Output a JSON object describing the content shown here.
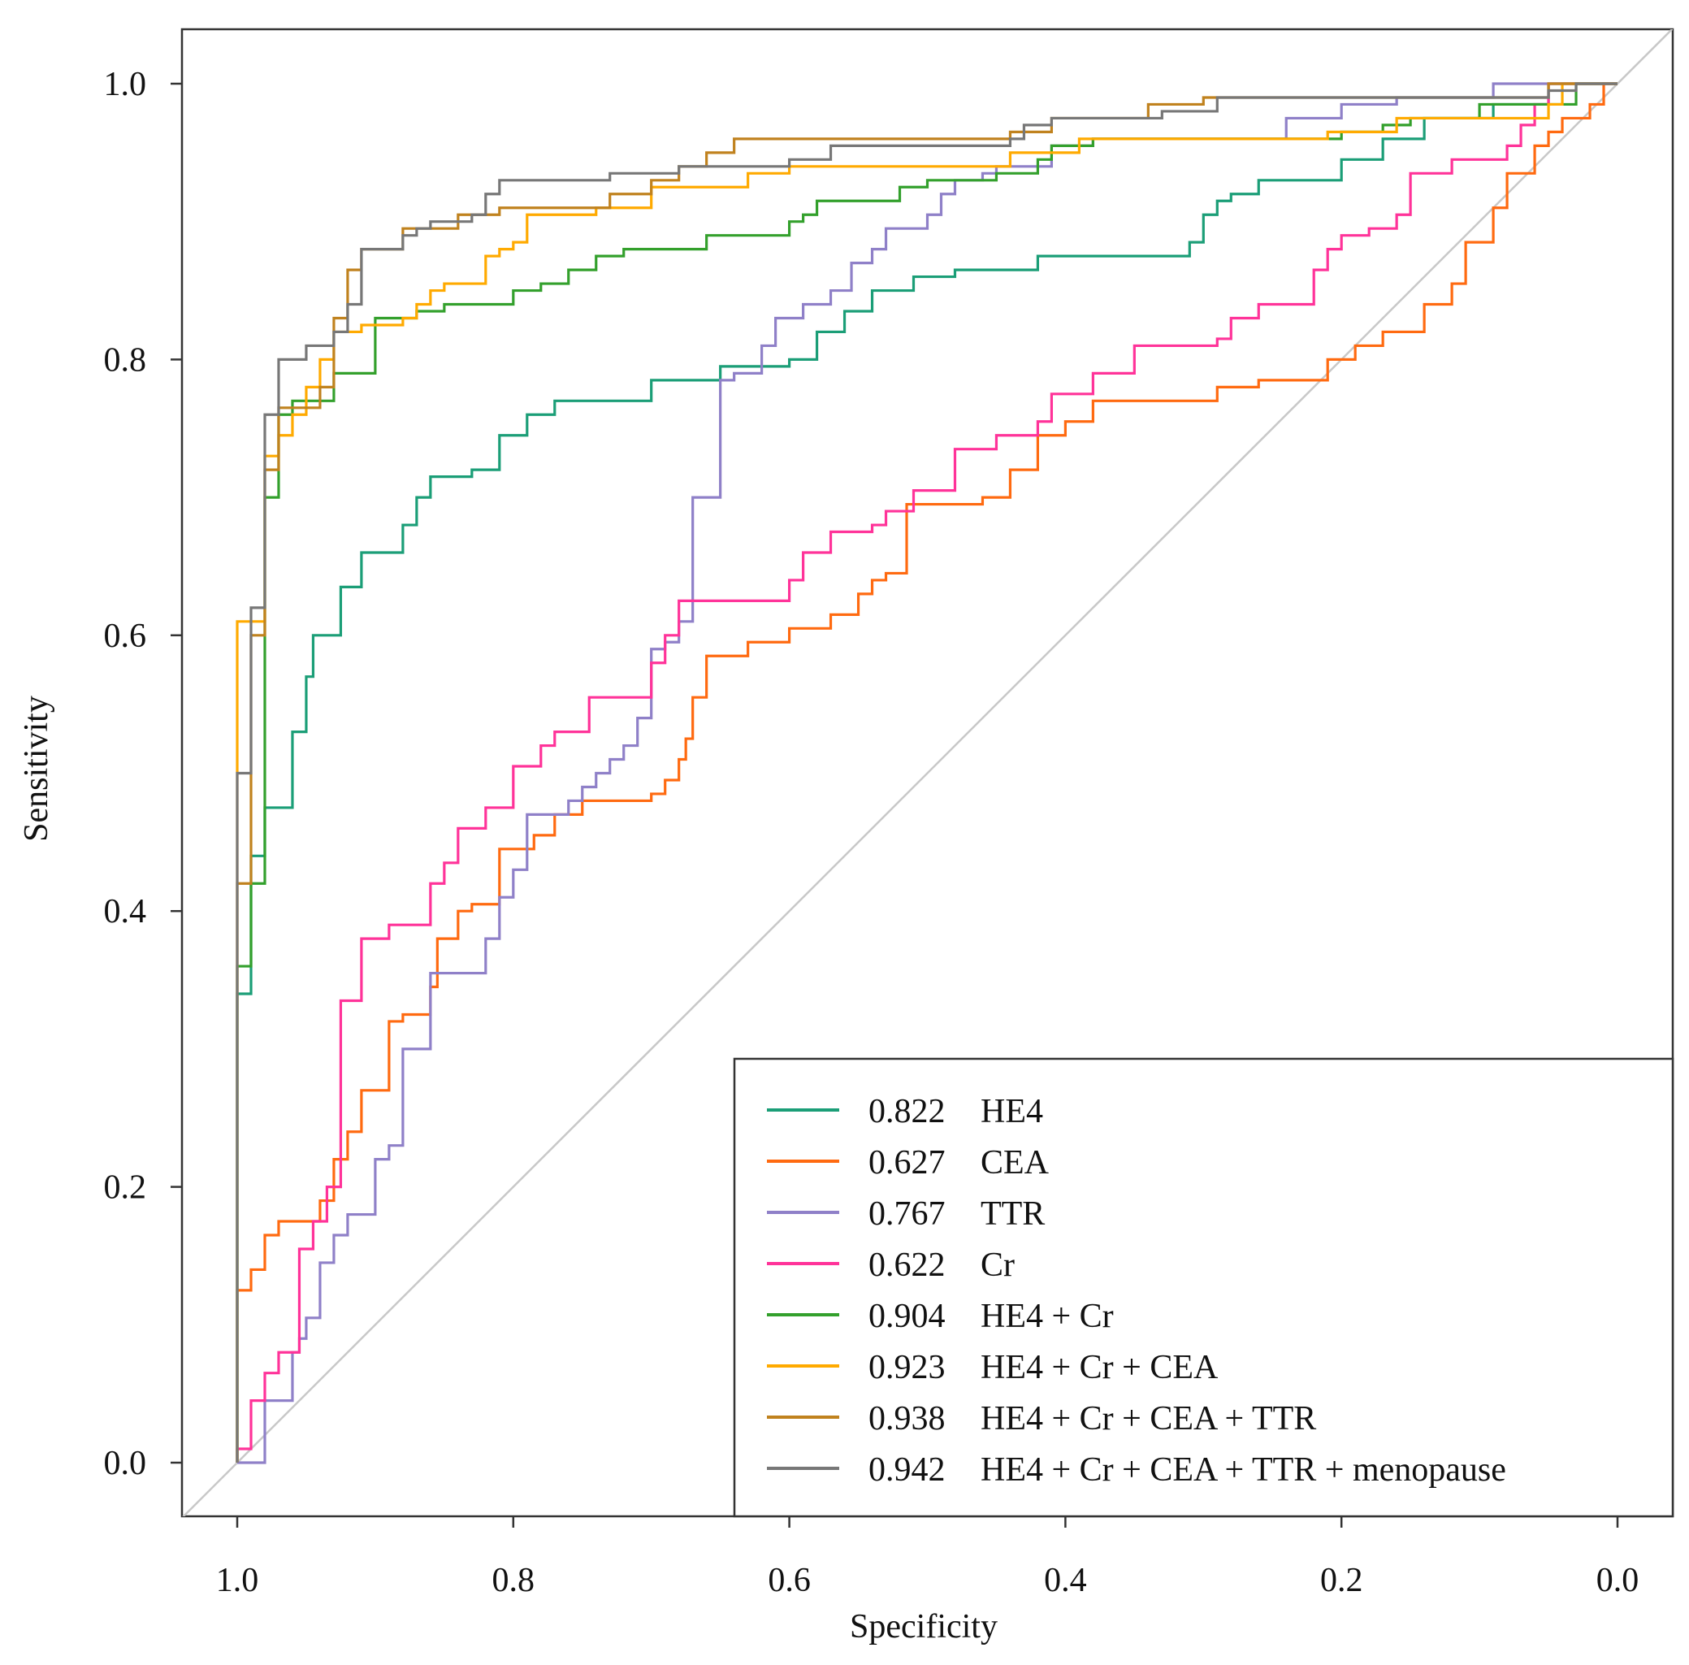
{
  "chart_data": {
    "type": "line",
    "title": "",
    "xlabel": "Specificity",
    "ylabel": "Sensitivity",
    "xlim": [
      1.0,
      0.0
    ],
    "ylim": [
      0.0,
      1.0
    ],
    "x_ticks": [
      "1.0",
      "0.8",
      "0.6",
      "0.4",
      "0.2",
      "0.0"
    ],
    "x_tick_values": [
      1.0,
      0.8,
      0.6,
      0.4,
      0.2,
      0.0
    ],
    "y_ticks": [
      "0.0",
      "0.2",
      "0.4",
      "0.6",
      "0.8",
      "1.0"
    ],
    "y_tick_values": [
      0.0,
      0.2,
      0.4,
      0.6,
      0.8,
      1.0
    ],
    "grid": false,
    "legend_position": "bottom-right",
    "reference_line": "diagonal",
    "series": [
      {
        "name": "HE4",
        "auc": "0.822",
        "color": "#1b9e77",
        "points": [
          [
            1,
            0
          ],
          [
            1,
            0.34
          ],
          [
            0.99,
            0.44
          ],
          [
            0.98,
            0.475
          ],
          [
            0.96,
            0.53
          ],
          [
            0.95,
            0.57
          ],
          [
            0.945,
            0.6
          ],
          [
            0.925,
            0.635
          ],
          [
            0.91,
            0.66
          ],
          [
            0.88,
            0.68
          ],
          [
            0.87,
            0.7
          ],
          [
            0.86,
            0.715
          ],
          [
            0.83,
            0.72
          ],
          [
            0.81,
            0.745
          ],
          [
            0.79,
            0.76
          ],
          [
            0.77,
            0.77
          ],
          [
            0.7,
            0.785
          ],
          [
            0.65,
            0.795
          ],
          [
            0.6,
            0.8
          ],
          [
            0.58,
            0.82
          ],
          [
            0.56,
            0.835
          ],
          [
            0.54,
            0.85
          ],
          [
            0.51,
            0.86
          ],
          [
            0.48,
            0.865
          ],
          [
            0.42,
            0.875
          ],
          [
            0.31,
            0.885
          ],
          [
            0.3,
            0.905
          ],
          [
            0.29,
            0.915
          ],
          [
            0.28,
            0.92
          ],
          [
            0.26,
            0.93
          ],
          [
            0.2,
            0.945
          ],
          [
            0.17,
            0.96
          ],
          [
            0.14,
            0.975
          ],
          [
            0.09,
            0.985
          ],
          [
            0.05,
            1
          ],
          [
            0,
            1
          ]
        ]
      },
      {
        "name": "CEA",
        "auc": "0.627",
        "color": "#ff6a10",
        "points": [
          [
            1,
            0
          ],
          [
            1,
            0.125
          ],
          [
            0.99,
            0.14
          ],
          [
            0.98,
            0.165
          ],
          [
            0.97,
            0.175
          ],
          [
            0.94,
            0.19
          ],
          [
            0.93,
            0.22
          ],
          [
            0.92,
            0.24
          ],
          [
            0.91,
            0.27
          ],
          [
            0.89,
            0.32
          ],
          [
            0.88,
            0.325
          ],
          [
            0.86,
            0.345
          ],
          [
            0.855,
            0.38
          ],
          [
            0.84,
            0.4
          ],
          [
            0.83,
            0.405
          ],
          [
            0.81,
            0.445
          ],
          [
            0.79,
            0.445
          ],
          [
            0.785,
            0.455
          ],
          [
            0.77,
            0.47
          ],
          [
            0.75,
            0.48
          ],
          [
            0.7,
            0.485
          ],
          [
            0.69,
            0.495
          ],
          [
            0.68,
            0.51
          ],
          [
            0.675,
            0.525
          ],
          [
            0.67,
            0.555
          ],
          [
            0.66,
            0.585
          ],
          [
            0.63,
            0.595
          ],
          [
            0.6,
            0.605
          ],
          [
            0.57,
            0.615
          ],
          [
            0.55,
            0.63
          ],
          [
            0.54,
            0.64
          ],
          [
            0.53,
            0.645
          ],
          [
            0.515,
            0.695
          ],
          [
            0.46,
            0.7
          ],
          [
            0.44,
            0.72
          ],
          [
            0.42,
            0.745
          ],
          [
            0.4,
            0.755
          ],
          [
            0.38,
            0.77
          ],
          [
            0.29,
            0.78
          ],
          [
            0.26,
            0.785
          ],
          [
            0.21,
            0.8
          ],
          [
            0.19,
            0.81
          ],
          [
            0.17,
            0.82
          ],
          [
            0.14,
            0.84
          ],
          [
            0.12,
            0.855
          ],
          [
            0.11,
            0.885
          ],
          [
            0.09,
            0.91
          ],
          [
            0.08,
            0.935
          ],
          [
            0.06,
            0.955
          ],
          [
            0.05,
            0.965
          ],
          [
            0.04,
            0.975
          ],
          [
            0.02,
            0.985
          ],
          [
            0.01,
            1
          ],
          [
            0,
            1
          ]
        ]
      },
      {
        "name": "TTR",
        "auc": "0.767",
        "color": "#8f80c8",
        "points": [
          [
            1,
            0
          ],
          [
            0.98,
            0.015
          ],
          [
            0.98,
            0.045
          ],
          [
            0.96,
            0.08
          ],
          [
            0.955,
            0.09
          ],
          [
            0.95,
            0.105
          ],
          [
            0.94,
            0.145
          ],
          [
            0.93,
            0.165
          ],
          [
            0.92,
            0.18
          ],
          [
            0.9,
            0.22
          ],
          [
            0.89,
            0.23
          ],
          [
            0.88,
            0.3
          ],
          [
            0.86,
            0.355
          ],
          [
            0.82,
            0.38
          ],
          [
            0.81,
            0.41
          ],
          [
            0.8,
            0.43
          ],
          [
            0.79,
            0.47
          ],
          [
            0.76,
            0.48
          ],
          [
            0.75,
            0.49
          ],
          [
            0.74,
            0.5
          ],
          [
            0.73,
            0.51
          ],
          [
            0.72,
            0.52
          ],
          [
            0.71,
            0.54
          ],
          [
            0.7,
            0.59
          ],
          [
            0.69,
            0.595
          ],
          [
            0.68,
            0.61
          ],
          [
            0.67,
            0.7
          ],
          [
            0.65,
            0.785
          ],
          [
            0.64,
            0.79
          ],
          [
            0.62,
            0.81
          ],
          [
            0.61,
            0.83
          ],
          [
            0.59,
            0.84
          ],
          [
            0.57,
            0.85
          ],
          [
            0.555,
            0.87
          ],
          [
            0.54,
            0.88
          ],
          [
            0.53,
            0.895
          ],
          [
            0.5,
            0.905
          ],
          [
            0.49,
            0.92
          ],
          [
            0.48,
            0.93
          ],
          [
            0.46,
            0.935
          ],
          [
            0.45,
            0.94
          ],
          [
            0.41,
            0.955
          ],
          [
            0.38,
            0.96
          ],
          [
            0.24,
            0.975
          ],
          [
            0.2,
            0.985
          ],
          [
            0.16,
            0.99
          ],
          [
            0.09,
            1
          ],
          [
            0,
            1
          ]
        ]
      },
      {
        "name": "Cr",
        "auc": "0.622",
        "color": "#ff3399",
        "points": [
          [
            1,
            0
          ],
          [
            1,
            0.01
          ],
          [
            0.99,
            0.045
          ],
          [
            0.98,
            0.065
          ],
          [
            0.97,
            0.08
          ],
          [
            0.955,
            0.155
          ],
          [
            0.945,
            0.175
          ],
          [
            0.935,
            0.2
          ],
          [
            0.925,
            0.335
          ],
          [
            0.91,
            0.38
          ],
          [
            0.89,
            0.39
          ],
          [
            0.86,
            0.42
          ],
          [
            0.85,
            0.435
          ],
          [
            0.84,
            0.46
          ],
          [
            0.82,
            0.475
          ],
          [
            0.8,
            0.505
          ],
          [
            0.78,
            0.52
          ],
          [
            0.77,
            0.53
          ],
          [
            0.745,
            0.555
          ],
          [
            0.7,
            0.58
          ],
          [
            0.69,
            0.6
          ],
          [
            0.68,
            0.625
          ],
          [
            0.64,
            0.625
          ],
          [
            0.6,
            0.64
          ],
          [
            0.59,
            0.66
          ],
          [
            0.57,
            0.675
          ],
          [
            0.54,
            0.68
          ],
          [
            0.53,
            0.69
          ],
          [
            0.51,
            0.705
          ],
          [
            0.48,
            0.735
          ],
          [
            0.45,
            0.745
          ],
          [
            0.42,
            0.755
          ],
          [
            0.41,
            0.775
          ],
          [
            0.38,
            0.79
          ],
          [
            0.35,
            0.81
          ],
          [
            0.29,
            0.815
          ],
          [
            0.28,
            0.83
          ],
          [
            0.26,
            0.84
          ],
          [
            0.22,
            0.865
          ],
          [
            0.21,
            0.88
          ],
          [
            0.2,
            0.89
          ],
          [
            0.18,
            0.895
          ],
          [
            0.16,
            0.905
          ],
          [
            0.15,
            0.935
          ],
          [
            0.12,
            0.945
          ],
          [
            0.08,
            0.955
          ],
          [
            0.07,
            0.97
          ],
          [
            0.06,
            0.985
          ],
          [
            0.05,
            1
          ],
          [
            0,
            1
          ]
        ]
      },
      {
        "name": "HE4 + Cr",
        "auc": "0.904",
        "color": "#33a02c",
        "points": [
          [
            1,
            0
          ],
          [
            1,
            0.36
          ],
          [
            0.99,
            0.42
          ],
          [
            0.98,
            0.7
          ],
          [
            0.97,
            0.76
          ],
          [
            0.96,
            0.77
          ],
          [
            0.93,
            0.79
          ],
          [
            0.9,
            0.83
          ],
          [
            0.87,
            0.835
          ],
          [
            0.85,
            0.84
          ],
          [
            0.8,
            0.85
          ],
          [
            0.78,
            0.855
          ],
          [
            0.76,
            0.865
          ],
          [
            0.74,
            0.875
          ],
          [
            0.72,
            0.88
          ],
          [
            0.66,
            0.89
          ],
          [
            0.6,
            0.9
          ],
          [
            0.59,
            0.905
          ],
          [
            0.58,
            0.915
          ],
          [
            0.52,
            0.925
          ],
          [
            0.5,
            0.93
          ],
          [
            0.45,
            0.935
          ],
          [
            0.42,
            0.945
          ],
          [
            0.41,
            0.955
          ],
          [
            0.38,
            0.96
          ],
          [
            0.2,
            0.965
          ],
          [
            0.17,
            0.97
          ],
          [
            0.15,
            0.975
          ],
          [
            0.1,
            0.985
          ],
          [
            0.03,
            1
          ],
          [
            0,
            1
          ]
        ]
      },
      {
        "name": "HE4 + Cr + CEA",
        "auc": "0.923",
        "color": "#ffaa00",
        "points": [
          [
            1,
            0
          ],
          [
            1,
            0.61
          ],
          [
            0.98,
            0.73
          ],
          [
            0.97,
            0.745
          ],
          [
            0.96,
            0.76
          ],
          [
            0.95,
            0.78
          ],
          [
            0.94,
            0.8
          ],
          [
            0.93,
            0.82
          ],
          [
            0.91,
            0.825
          ],
          [
            0.88,
            0.83
          ],
          [
            0.87,
            0.84
          ],
          [
            0.86,
            0.85
          ],
          [
            0.85,
            0.855
          ],
          [
            0.82,
            0.875
          ],
          [
            0.81,
            0.88
          ],
          [
            0.8,
            0.885
          ],
          [
            0.79,
            0.905
          ],
          [
            0.74,
            0.91
          ],
          [
            0.7,
            0.925
          ],
          [
            0.63,
            0.935
          ],
          [
            0.6,
            0.94
          ],
          [
            0.44,
            0.95
          ],
          [
            0.39,
            0.96
          ],
          [
            0.21,
            0.965
          ],
          [
            0.16,
            0.975
          ],
          [
            0.05,
            0.985
          ],
          [
            0.04,
            1
          ],
          [
            0,
            1
          ]
        ]
      },
      {
        "name": "HE4 + Cr + CEA + TTR",
        "auc": "0.938",
        "color": "#c0821e",
        "points": [
          [
            1,
            0
          ],
          [
            1,
            0.42
          ],
          [
            0.99,
            0.6
          ],
          [
            0.98,
            0.72
          ],
          [
            0.97,
            0.765
          ],
          [
            0.94,
            0.78
          ],
          [
            0.93,
            0.83
          ],
          [
            0.92,
            0.865
          ],
          [
            0.91,
            0.88
          ],
          [
            0.88,
            0.895
          ],
          [
            0.84,
            0.905
          ],
          [
            0.81,
            0.91
          ],
          [
            0.73,
            0.92
          ],
          [
            0.7,
            0.93
          ],
          [
            0.68,
            0.94
          ],
          [
            0.66,
            0.95
          ],
          [
            0.64,
            0.96
          ],
          [
            0.44,
            0.965
          ],
          [
            0.41,
            0.975
          ],
          [
            0.34,
            0.985
          ],
          [
            0.3,
            0.99
          ],
          [
            0.05,
            1
          ],
          [
            0,
            1
          ]
        ]
      },
      {
        "name": "HE4 + Cr + CEA + TTR + menopause",
        "auc": "0.942",
        "color": "#777777",
        "points": [
          [
            1,
            0
          ],
          [
            1,
            0.5
          ],
          [
            0.99,
            0.62
          ],
          [
            0.98,
            0.76
          ],
          [
            0.97,
            0.8
          ],
          [
            0.95,
            0.81
          ],
          [
            0.93,
            0.82
          ],
          [
            0.92,
            0.84
          ],
          [
            0.91,
            0.88
          ],
          [
            0.88,
            0.89
          ],
          [
            0.87,
            0.895
          ],
          [
            0.86,
            0.9
          ],
          [
            0.83,
            0.905
          ],
          [
            0.82,
            0.92
          ],
          [
            0.81,
            0.93
          ],
          [
            0.73,
            0.935
          ],
          [
            0.68,
            0.94
          ],
          [
            0.6,
            0.945
          ],
          [
            0.57,
            0.955
          ],
          [
            0.44,
            0.96
          ],
          [
            0.43,
            0.97
          ],
          [
            0.41,
            0.975
          ],
          [
            0.33,
            0.98
          ],
          [
            0.29,
            0.99
          ],
          [
            0.05,
            0.995
          ],
          [
            0.03,
            1
          ],
          [
            0,
            1
          ]
        ]
      }
    ]
  }
}
